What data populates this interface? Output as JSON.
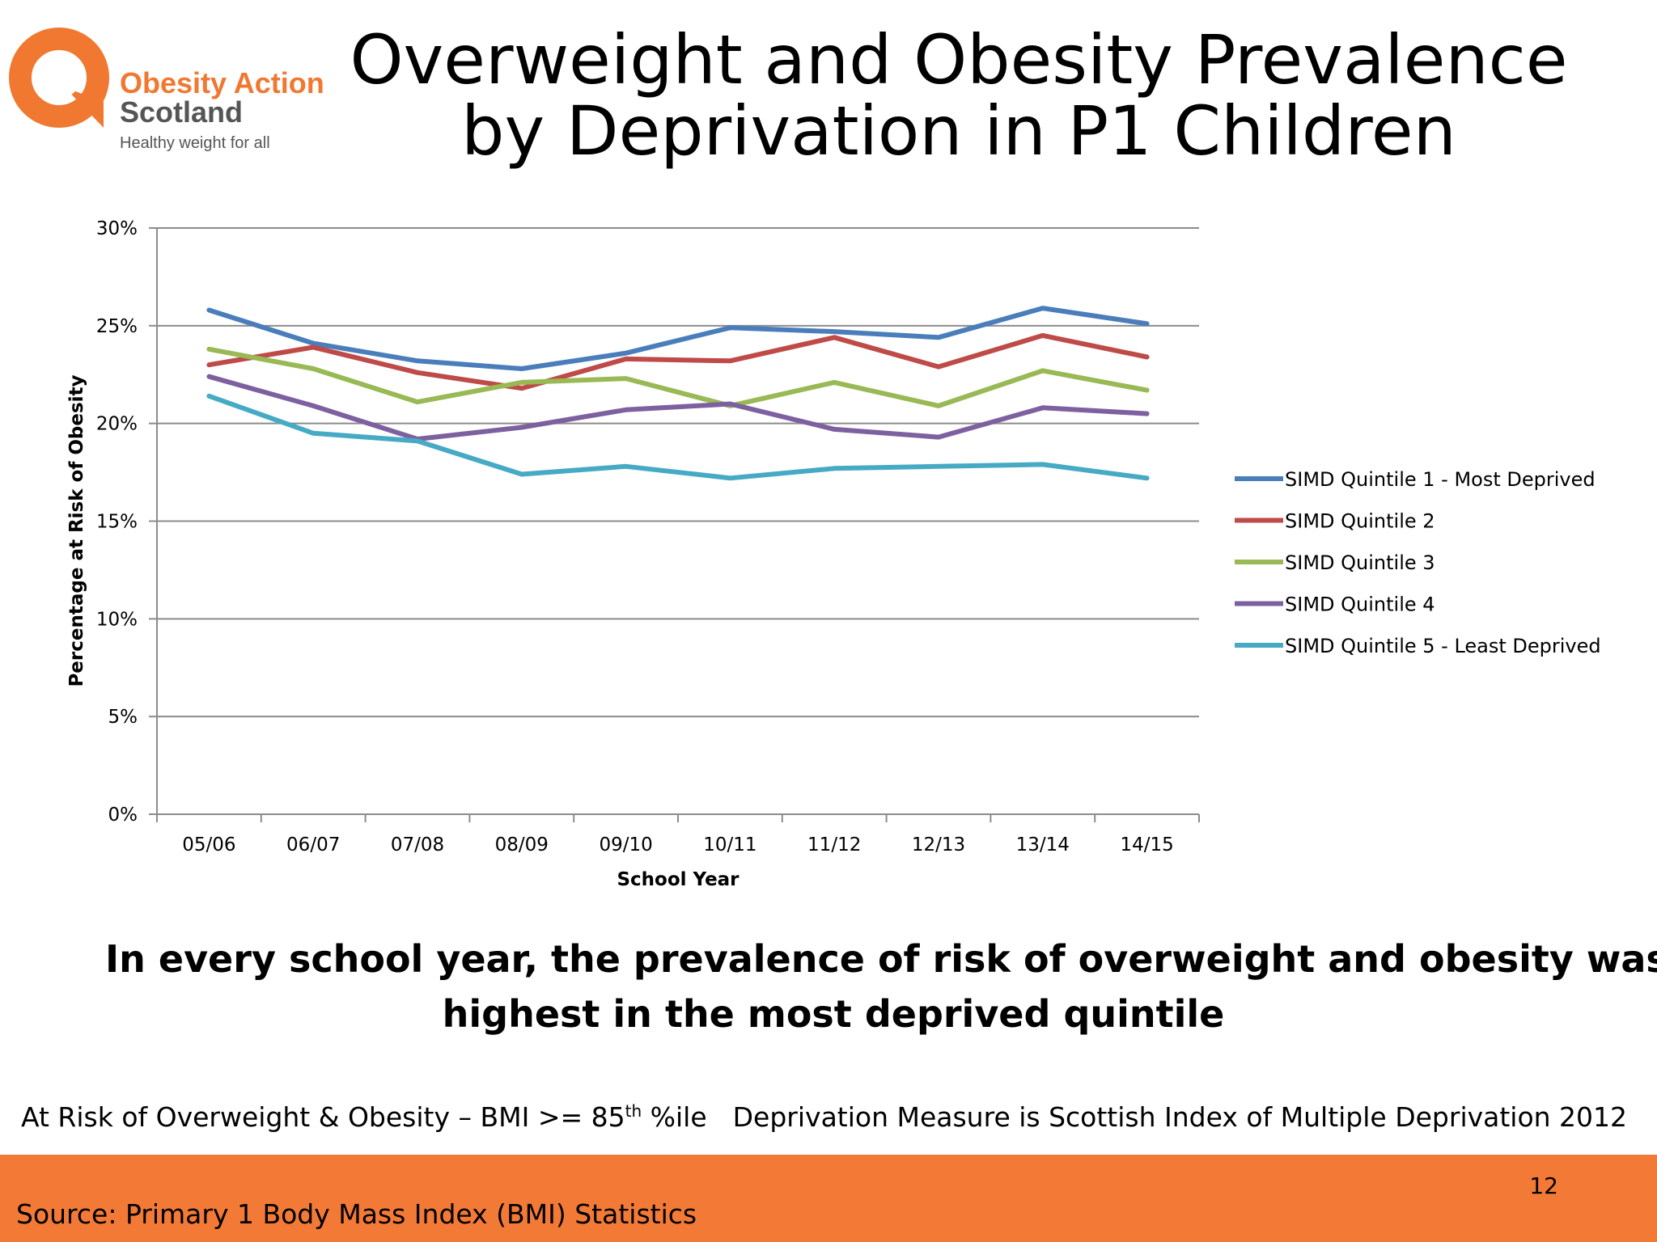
{
  "logo": {
    "line1": "Obesity Action",
    "line2": "Scotland",
    "tagline": "Healthy weight for all",
    "brand_color": "#f07830"
  },
  "title": {
    "line1": "Overweight and Obesity Prevalence",
    "line2": "by Deprivation in P1 Children"
  },
  "chart_data": {
    "type": "line",
    "categories": [
      "05/06",
      "06/07",
      "07/08",
      "08/09",
      "09/10",
      "10/11",
      "11/12",
      "12/13",
      "13/14",
      "14/15"
    ],
    "series": [
      {
        "name": "SIMD Quintile 1 - Most Deprived",
        "color": "#4a7ebb",
        "values": [
          25.8,
          24.1,
          23.2,
          22.8,
          23.6,
          24.9,
          24.7,
          24.4,
          25.9,
          25.1
        ]
      },
      {
        "name": "SIMD Quintile 2",
        "color": "#be4b48",
        "values": [
          23.0,
          23.9,
          22.6,
          21.8,
          23.3,
          23.2,
          24.4,
          22.9,
          24.5,
          23.4
        ]
      },
      {
        "name": "SIMD Quintile 3",
        "color": "#98b954",
        "values": [
          23.8,
          22.8,
          21.1,
          22.1,
          22.3,
          20.9,
          22.1,
          20.9,
          22.7,
          21.7
        ]
      },
      {
        "name": "SIMD Quintile 4",
        "color": "#7d60a0",
        "values": [
          22.4,
          20.9,
          19.2,
          19.8,
          20.7,
          21.0,
          19.7,
          19.3,
          20.8,
          20.5
        ]
      },
      {
        "name": "SIMD Quintile 5 - Least Deprived",
        "color": "#46aac5",
        "values": [
          21.4,
          19.5,
          19.1,
          17.4,
          17.8,
          17.2,
          17.7,
          17.8,
          17.9,
          17.2
        ]
      }
    ],
    "xlabel": "School Year",
    "ylabel": "Percentage at Risk of Obesity",
    "ylim": [
      0,
      30
    ],
    "yticks": [
      "0%",
      "5%",
      "10%",
      "15%",
      "20%",
      "25%",
      "30%"
    ],
    "ytick_values": [
      0,
      5,
      10,
      15,
      20,
      25,
      30
    ],
    "grid": true,
    "legend": "right"
  },
  "conclusion": {
    "line1": "In every school year, the prevalence of risk of overweight and obesity was",
    "line2": "highest in the most deprived quintile"
  },
  "notes": {
    "definition_prefix": "At Risk of Overweight & Obesity – BMI >= 85",
    "definition_sup": "th",
    "definition_suffix": " %ile",
    "deprivation": "Deprivation Measure is Scottish Index of Multiple Deprivation 2012"
  },
  "footer": {
    "page_number": "12",
    "source": "Source: Primary 1 Body Mass Index (BMI) Statistics",
    "color": "#f37a36"
  }
}
